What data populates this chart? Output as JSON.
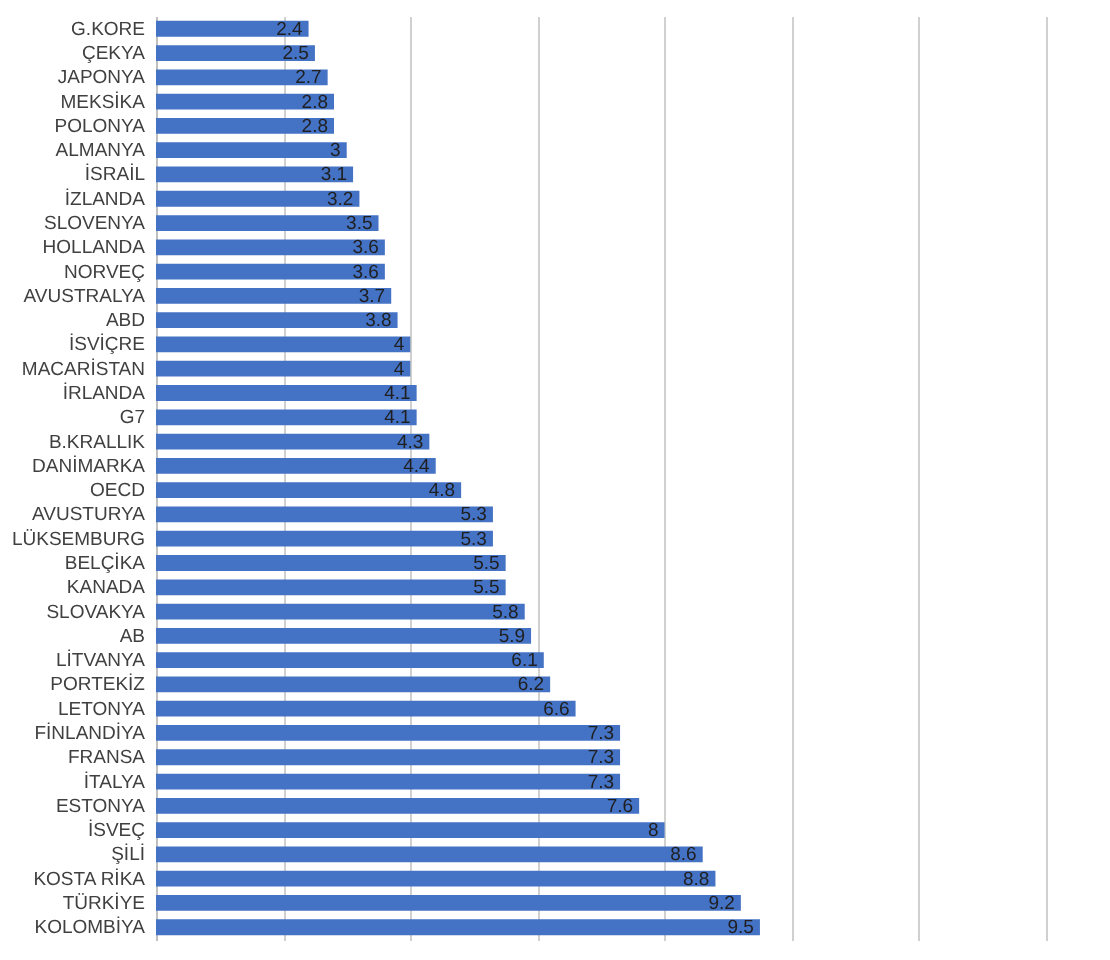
{
  "chart_data": {
    "type": "bar",
    "orientation": "horizontal",
    "categories": [
      "G.KORE",
      "ÇEKYA",
      "JAPONYA",
      "MEKSİKA",
      "POLONYA",
      "ALMANYA",
      "İSRAİL",
      "İZLANDA",
      "SLOVENYA",
      "HOLLANDA",
      "NORVEÇ",
      "AVUSTRALYA",
      "ABD",
      "İSVİÇRE",
      "MACARİSTAN",
      "İRLANDA",
      "G7",
      "B.KRALLIK",
      "DANİMARKA",
      "OECD",
      "AVUSTURYA",
      "LÜKSEMBURG",
      "BELÇİKA",
      "KANADA",
      "SLOVAKYA",
      "AB",
      "LİTVANYA",
      "PORTEKİZ",
      "LETONYA",
      "FİNLANDİYA",
      "FRANSA",
      "İTALYA",
      "ESTONYA",
      "İSVEÇ",
      "ŞİLİ",
      "KOSTA RİKA",
      "TÜRKİYE",
      "KOLOMBİYA"
    ],
    "values": [
      2.4,
      2.5,
      2.7,
      2.8,
      2.8,
      3,
      3.1,
      3.2,
      3.5,
      3.6,
      3.6,
      3.7,
      3.8,
      4,
      4,
      4.1,
      4.1,
      4.3,
      4.4,
      4.8,
      5.3,
      5.3,
      5.5,
      5.5,
      5.8,
      5.9,
      6.1,
      6.2,
      6.6,
      7.3,
      7.3,
      7.3,
      7.6,
      8,
      8.6,
      8.8,
      9.2,
      9.5
    ],
    "color": "#4472c4",
    "data_labels": true,
    "grid": "x",
    "tick_labels": "y",
    "xlim": [
      0,
      14
    ],
    "xticks": [
      {
        "value": 0,
        "label": null
      },
      {
        "value": 2,
        "label": null
      },
      {
        "value": 4,
        "label": null
      },
      {
        "value": 6,
        "label": null
      },
      {
        "value": 8,
        "label": null
      },
      {
        "value": 10,
        "label": null
      },
      {
        "value": 12,
        "label": null
      },
      {
        "value": 14,
        "label": null
      }
    ]
  }
}
